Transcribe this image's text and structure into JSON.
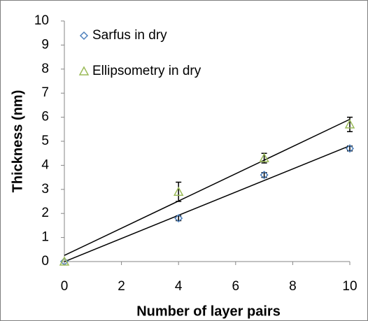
{
  "chart_data": {
    "type": "scatter",
    "xlabel": "Number of layer pairs",
    "ylabel": "Thickness (nm)",
    "xlim": [
      0,
      10
    ],
    "ylim": [
      0,
      10
    ],
    "xticks": [
      0,
      2,
      4,
      6,
      8,
      10
    ],
    "yticks": [
      0,
      1,
      2,
      3,
      4,
      5,
      6,
      7,
      8,
      9,
      10
    ],
    "grid": false,
    "trendline": "linear",
    "legend": "upper left",
    "series": [
      {
        "name": "Sarfus in dry",
        "color": "#4f81bd",
        "marker": "diamond",
        "x": [
          0,
          4,
          7,
          10
        ],
        "values": [
          0,
          1.8,
          3.6,
          4.7
        ],
        "errors": [
          null,
          0.1,
          0.1,
          0.1
        ]
      },
      {
        "name": "Ellipsometry in dry",
        "color": "#9bbb59",
        "marker": "triangle",
        "x": [
          0,
          4,
          7,
          10
        ],
        "values": [
          0,
          2.9,
          4.3,
          5.7
        ],
        "errors": [
          null,
          0.4,
          0.2,
          0.3
        ]
      }
    ]
  }
}
